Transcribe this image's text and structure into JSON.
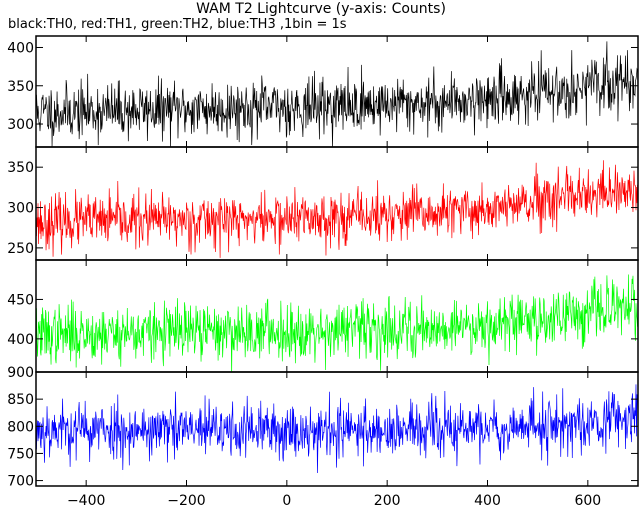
{
  "title": "WAM T2 Lightcurve (y-axis: Counts)",
  "subtitle": "black:TH0, red:TH1, green:TH2, blue:TH3 ,1bin = 1s",
  "chart_data": [
    {
      "type": "line",
      "series": [
        {
          "name": "TH0",
          "color": "#000000"
        }
      ],
      "xlim": [
        -500,
        700
      ],
      "ylim": [
        270,
        415
      ],
      "yticks": [
        300,
        350,
        400
      ],
      "ytick_labels": [
        "300",
        "350",
        "400"
      ],
      "trend": {
        "x": [
          -500,
          -300,
          0,
          300,
          500,
          700
        ],
        "y": [
          315,
          318,
          322,
          328,
          340,
          358
        ]
      },
      "noise_std": 18,
      "grid": false
    },
    {
      "type": "line",
      "series": [
        {
          "name": "TH1",
          "color": "#ff0000"
        }
      ],
      "xlim": [
        -500,
        700
      ],
      "ylim": [
        235,
        375
      ],
      "yticks": [
        250,
        300,
        350
      ],
      "ytick_labels": [
        "250",
        "300",
        "350"
      ],
      "trend": {
        "x": [
          -500,
          -300,
          0,
          300,
          500,
          700
        ],
        "y": [
          282,
          284,
          286,
          292,
          305,
          322
        ]
      },
      "noise_std": 16,
      "grid": false
    },
    {
      "type": "line",
      "series": [
        {
          "name": "TH2",
          "color": "#00ff00"
        }
      ],
      "xlim": [
        -500,
        700
      ],
      "ylim": [
        358,
        500
      ],
      "yticks": [
        400,
        450
      ],
      "ytick_labels": [
        "400",
        "450"
      ],
      "trend": {
        "x": [
          -500,
          -300,
          0,
          300,
          500,
          700
        ],
        "y": [
          405,
          408,
          410,
          414,
          425,
          442
        ]
      },
      "noise_std": 18,
      "grid": false
    },
    {
      "type": "line",
      "series": [
        {
          "name": "TH3",
          "color": "#0000ff"
        }
      ],
      "xlim": [
        -500,
        700
      ],
      "ylim": [
        690,
        900
      ],
      "yticks": [
        700,
        750,
        800,
        850,
        900
      ],
      "ytick_labels": [
        "700",
        "750",
        "800",
        "850",
        "900"
      ],
      "trend": {
        "x": [
          -500,
          -300,
          0,
          300,
          500,
          700
        ],
        "y": [
          795,
          793,
          792,
          793,
          800,
          818
        ]
      },
      "noise_std": 26,
      "grid": false
    }
  ],
  "xticks": [
    -400,
    -200,
    0,
    200,
    400,
    600
  ],
  "xtick_labels": [
    "−400",
    "−200",
    "0",
    "200",
    "400",
    "600"
  ]
}
